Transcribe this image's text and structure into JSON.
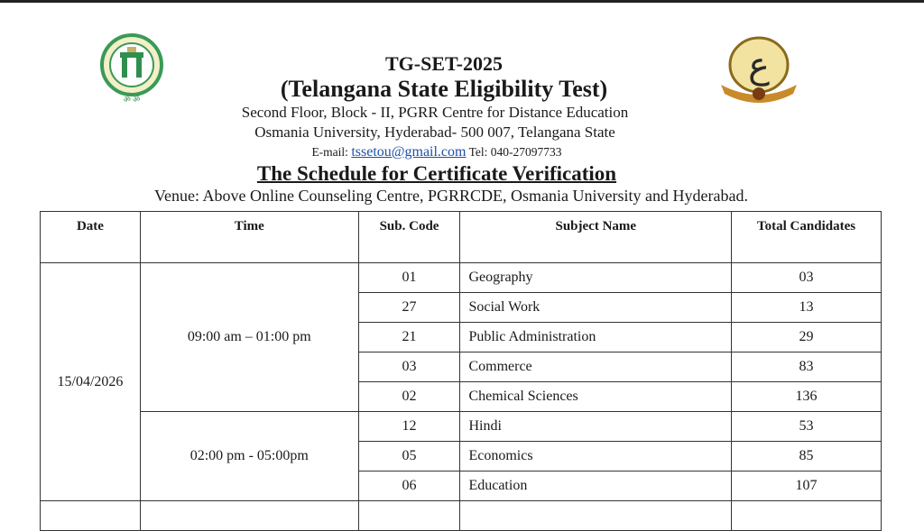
{
  "header": {
    "title": "TG-SET-2025",
    "subtitle": "(Telangana  State Eligibility Test)",
    "address_line1": "Second Floor, Block - II, PGRR  Centre for Distance Education",
    "address_line2": "Osmania University, Hyderabad- 500 007, Telangana State",
    "email_label": "E-mail:",
    "email": "tssetou@gmail.com",
    "tel": "Tel: 040-27097733",
    "schedule_title": "The Schedule for Certificate Verification",
    "venue": "Venue: Above Online Counseling Centre, PGRRCDE, Osmania University and Hyderabad."
  },
  "logos": {
    "left": "Government of Telangana emblem",
    "right": "Osmania University emblem",
    "left_text": "GOVERNMENT OF TELANGANA"
  },
  "table": {
    "columns": [
      "Date",
      "Time",
      "Sub. Code",
      "Subject Name",
      "Total Candidates"
    ],
    "date": "15/04/2026",
    "slots": [
      {
        "time": "09:00 am – 01:00 pm",
        "rows": [
          {
            "code": "01",
            "subject": "Geography",
            "total": "03"
          },
          {
            "code": "27",
            "subject": "Social Work",
            "total": "13"
          },
          {
            "code": "21",
            "subject": "Public Administration",
            "total": "29"
          },
          {
            "code": "03",
            "subject": "Commerce",
            "total": "83"
          },
          {
            "code": "02",
            "subject": "Chemical Sciences",
            "total": "136"
          }
        ]
      },
      {
        "time": "02:00 pm  - 05:00pm",
        "rows": [
          {
            "code": "12",
            "subject": "Hindi",
            "total": "53"
          },
          {
            "code": "05",
            "subject": "Economics",
            "total": "85"
          },
          {
            "code": "06",
            "subject": "Education",
            "total": "107"
          }
        ]
      }
    ]
  },
  "colors": {
    "link": "#1f4fa8",
    "emblem_green": "#2f8f4e",
    "emblem_gold": "#c9a227"
  }
}
